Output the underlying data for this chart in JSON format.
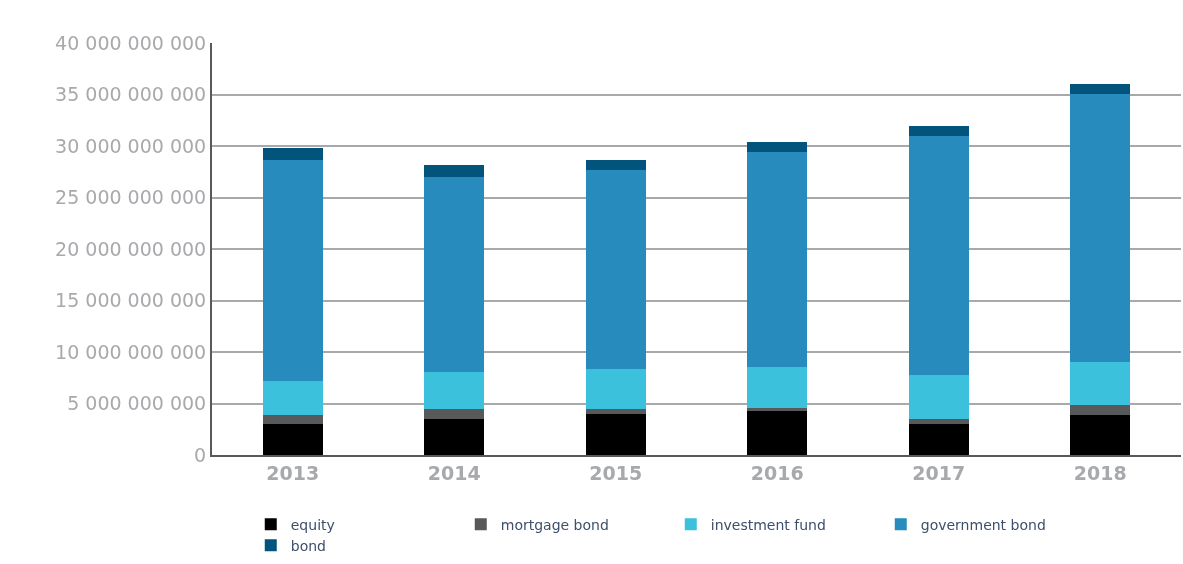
{
  "chart_data": {
    "type": "bar",
    "stacked": true,
    "categories": [
      "2013",
      "2014",
      "2015",
      "2016",
      "2017",
      "2018"
    ],
    "series": [
      {
        "name": "equity",
        "color": "#000000",
        "values": [
          3000000000,
          3470000000,
          3970000000,
          4270000000,
          3000000000,
          3860000000
        ]
      },
      {
        "name": "mortgage bond",
        "color": "#58595b",
        "values": [
          850000000,
          950000000,
          450000000,
          260000000,
          450000000,
          1040000000
        ]
      },
      {
        "name": "investment fund",
        "color": "#3bc1dc",
        "values": [
          3300000000,
          3650000000,
          3970000000,
          4040000000,
          4340000000,
          4150000000
        ]
      },
      {
        "name": "government bond",
        "color": "#278cbd",
        "values": [
          21500000000,
          18900000000,
          19300000000,
          20800000000,
          23200000000,
          26000000000
        ]
      },
      {
        "name": "bond",
        "color": "#02547c",
        "values": [
          1150000000,
          1150000000,
          970000000,
          1000000000,
          930000000,
          1000000000
        ]
      }
    ],
    "ylim": [
      0,
      40000000000
    ],
    "yticks": [
      {
        "value": 0,
        "label": "0"
      },
      {
        "value": 5000000000,
        "label": "5 000 000 000"
      },
      {
        "value": 10000000000,
        "label": "10 000 000 000"
      },
      {
        "value": 15000000000,
        "label": "15 000 000 000"
      },
      {
        "value": 20000000000,
        "label": "20 000 000 000"
      },
      {
        "value": 25000000000,
        "label": "25 000 000 000"
      },
      {
        "value": 30000000000,
        "label": "30 000 000 000"
      },
      {
        "value": 35000000000,
        "label": "35 000 000 000"
      },
      {
        "value": 40000000000,
        "label": "40 000 000 000"
      }
    ],
    "grid": "y",
    "legend": "bottom"
  }
}
